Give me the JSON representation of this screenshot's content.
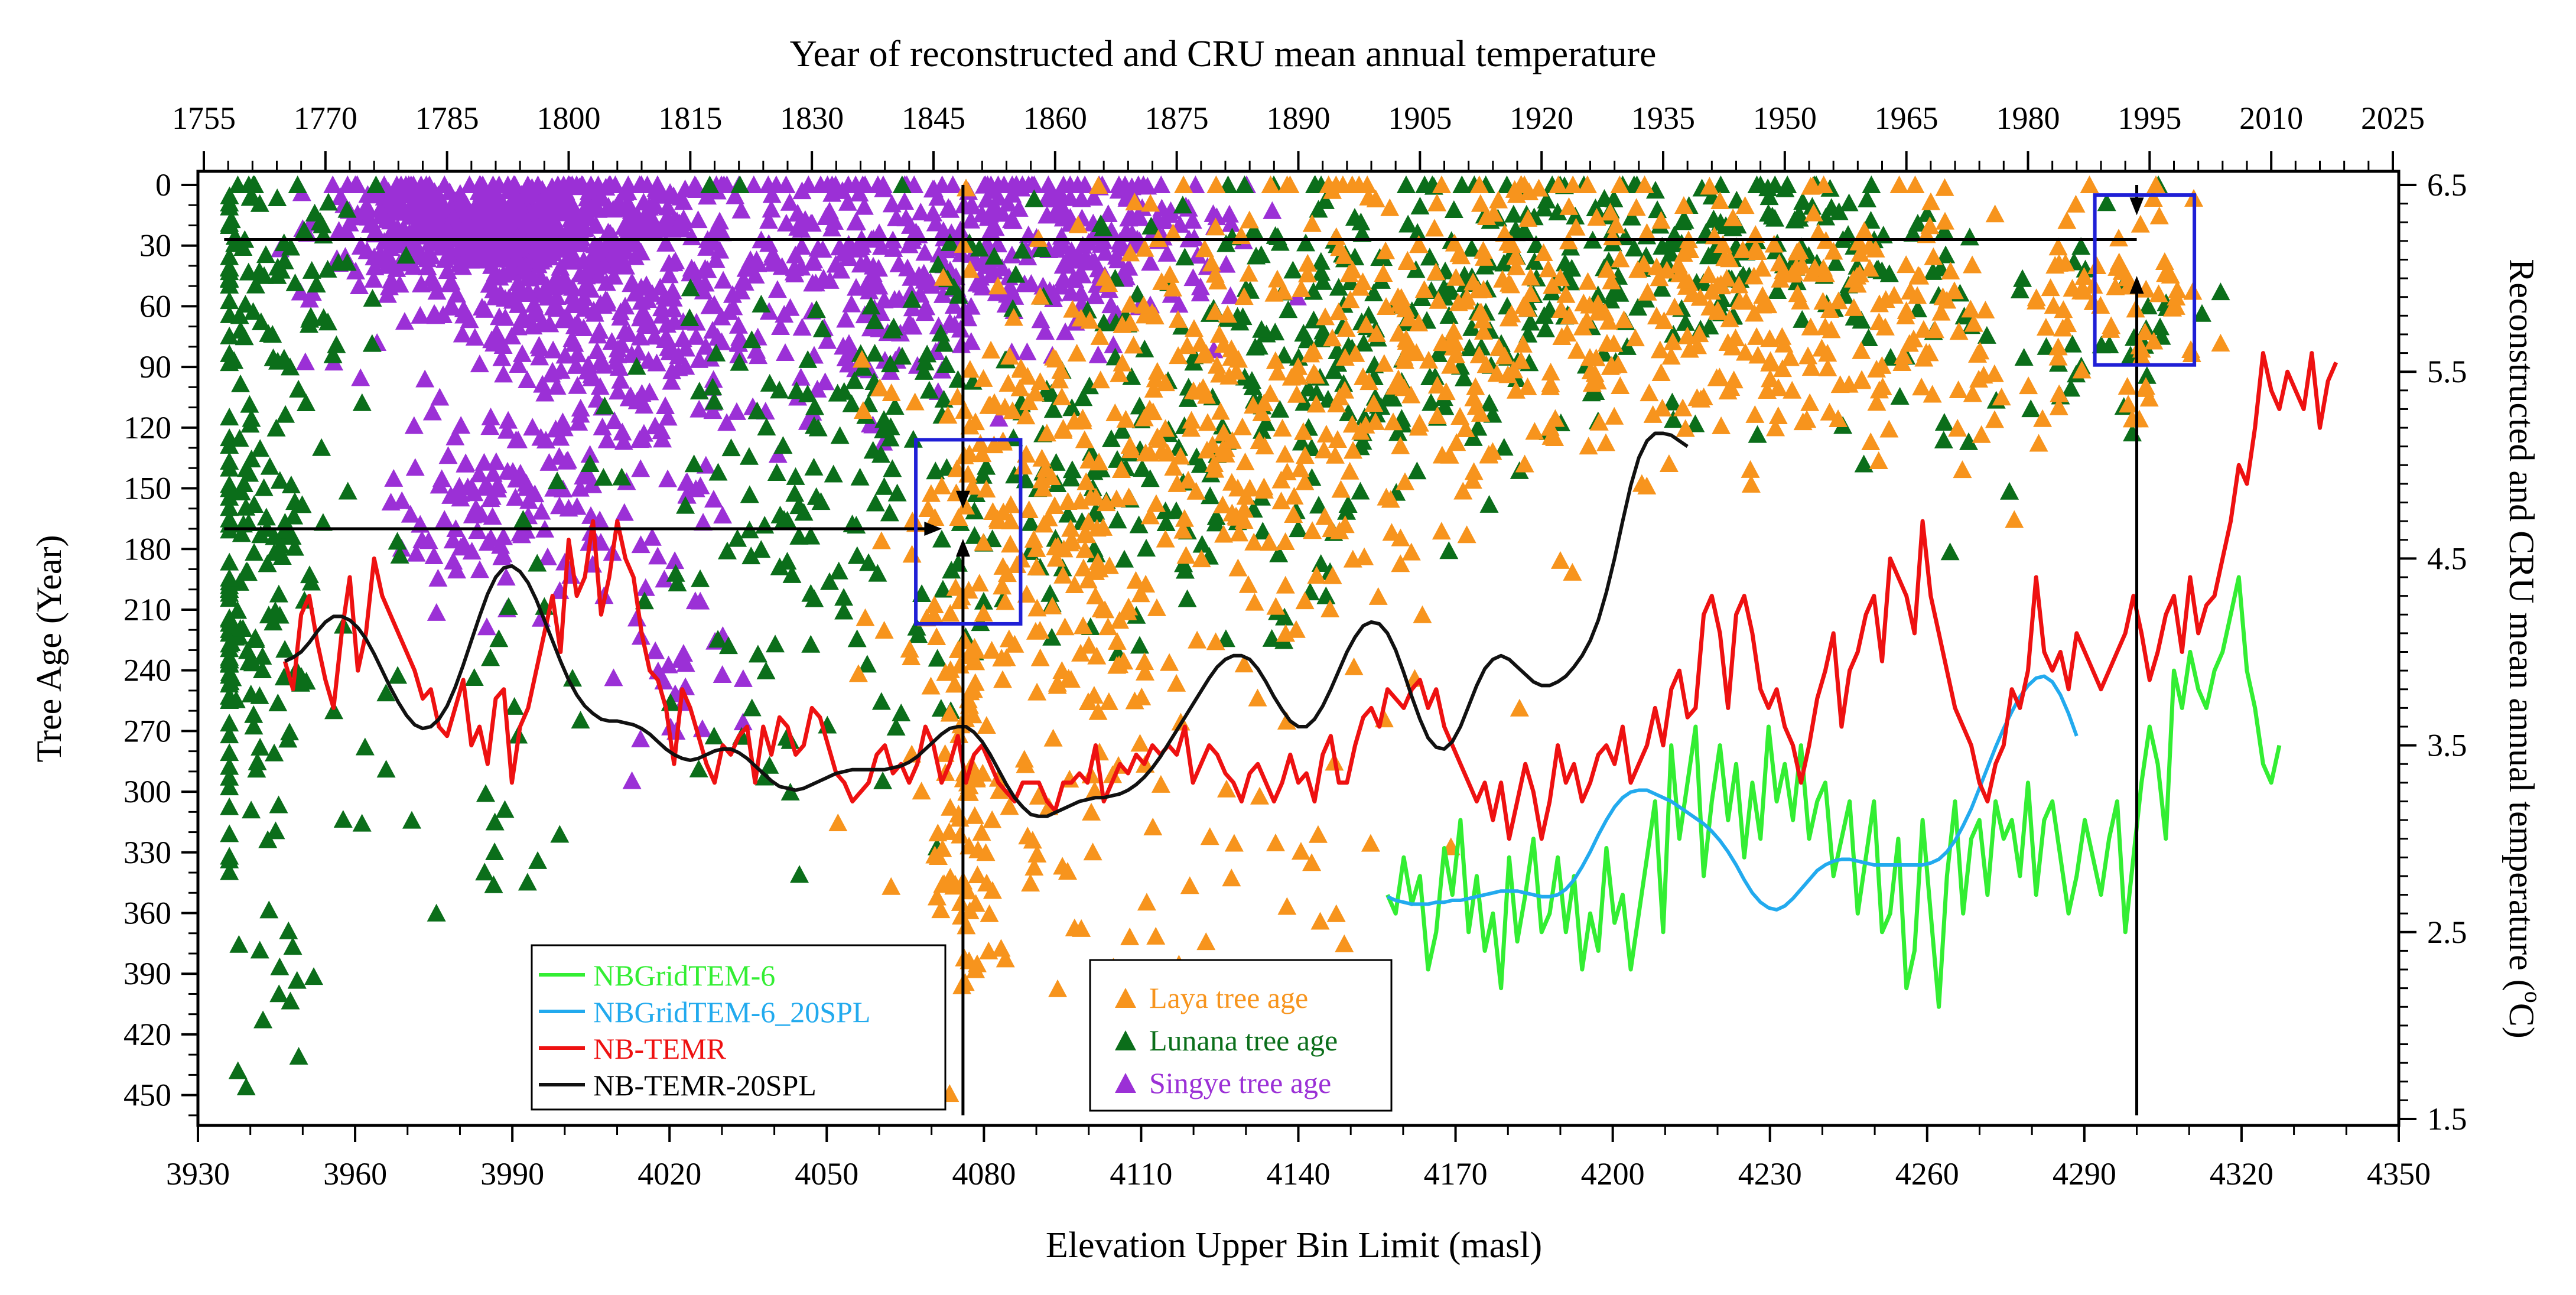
{
  "chart_data": {
    "type": "scatter",
    "title": "Year of reconstructed and CRU mean annual temperature",
    "xlabel": "Elevation Upper Bin Limit (masl)",
    "ylabel": "Tree Age (Year)",
    "ylabel_right_prefix": "Reconstructed and CRU mean annual temperature (",
    "ylabel_right_sup": "o",
    "ylabel_right_suffix": "C)",
    "xlim": [
      3930,
      4350
    ],
    "x_ticks": [
      "3930",
      "3960",
      "3990",
      "4020",
      "4050",
      "4080",
      "4110",
      "4140",
      "4170",
      "4200",
      "4230",
      "4260",
      "4290",
      "4320",
      "4350"
    ],
    "top_xlim": [
      1755,
      2025
    ],
    "top_ticks": [
      "1755",
      "1770",
      "1785",
      "1800",
      "1815",
      "1830",
      "1845",
      "1860",
      "1875",
      "1890",
      "1905",
      "1920",
      "1935",
      "1950",
      "1965",
      "1980",
      "1995",
      "2010",
      "2025"
    ],
    "ylim_left": [
      0,
      465
    ],
    "y_ticks": [
      "0",
      "30",
      "60",
      "90",
      "120",
      "150",
      "180",
      "210",
      "240",
      "270",
      "300",
      "330",
      "360",
      "390",
      "420",
      "450"
    ],
    "ylim_right": [
      1.5,
      6.5
    ],
    "y2_ticks": [
      "1.5",
      "2.5",
      "3.5",
      "4.5",
      "5.5",
      "6.5"
    ],
    "legend_lines": [
      {
        "label": "NBGridTEM-6",
        "color": "#33ee33"
      },
      {
        "label": "NBGridTEM-6_20SPL",
        "color": "#22aaee"
      },
      {
        "label": "NB-TEMR",
        "color": "#ee1111"
      },
      {
        "label": "NB-TEMR-20SPL",
        "color": "#111111"
      }
    ],
    "legend_scatter": [
      {
        "label": "Laya tree age",
        "color": "#f7941d"
      },
      {
        "label": "Lunana tree age",
        "color": "#0b6e1a"
      },
      {
        "label": "Singye tree age",
        "color": "#9b30d6"
      }
    ],
    "scatter_series": [
      {
        "name": "Singye tree age",
        "color": "#9b30d6",
        "clusters": [
          [
            3985,
            20,
            14,
            12,
            420
          ],
          [
            4000,
            40,
            20,
            28,
            380
          ],
          [
            4010,
            100,
            14,
            50,
            160
          ],
          [
            3985,
            160,
            10,
            25,
            90
          ],
          [
            4060,
            40,
            18,
            35,
            260
          ],
          [
            4100,
            30,
            15,
            20,
            180
          ],
          [
            4020,
            230,
            8,
            35,
            30
          ]
        ]
      },
      {
        "name": "Lunana tree age",
        "color": "#0b6e1a",
        "clusters": [
          [
            3945,
            40,
            10,
            30,
            70
          ],
          [
            3940,
            200,
            6,
            70,
            150
          ],
          [
            3945,
            400,
            5,
            40,
            14
          ],
          [
            3990,
            250,
            25,
            60,
            50
          ],
          [
            4050,
            150,
            18,
            70,
            140
          ],
          [
            4110,
            130,
            25,
            55,
            200
          ],
          [
            4170,
            60,
            25,
            40,
            220
          ],
          [
            4230,
            30,
            20,
            20,
            130
          ],
          [
            4270,
            80,
            20,
            40,
            40
          ],
          [
            4298,
            70,
            6,
            30,
            15
          ]
        ]
      },
      {
        "name": "Laya tree age",
        "color": "#f7941d",
        "clusters": [
          [
            4076,
            310,
            3,
            60,
            70
          ],
          [
            4090,
            220,
            15,
            80,
            160
          ],
          [
            4110,
            130,
            20,
            60,
            200
          ],
          [
            4150,
            120,
            20,
            70,
            150
          ],
          [
            4200,
            60,
            30,
            40,
            280
          ],
          [
            4260,
            70,
            25,
            35,
            130
          ],
          [
            4300,
            50,
            8,
            30,
            40
          ],
          [
            4130,
            340,
            18,
            30,
            25
          ]
        ]
      }
    ],
    "series": [
      {
        "name": "NB-TEMR",
        "color": "#ee1111",
        "x_start": 1765,
        "x_step": 1,
        "values": [
          3.95,
          3.8,
          4.2,
          4.3,
          4.05,
          3.85,
          3.7,
          4.1,
          4.4,
          3.9,
          4.1,
          4.5,
          4.3,
          4.2,
          4.1,
          4.0,
          3.9,
          3.75,
          3.8,
          3.6,
          3.55,
          3.7,
          3.85,
          3.5,
          3.6,
          3.4,
          3.75,
          3.8,
          3.3,
          3.6,
          3.7,
          3.9,
          4.1,
          4.3,
          4.0,
          4.6,
          4.3,
          4.4,
          4.7,
          4.2,
          4.4,
          4.7,
          4.5,
          4.4,
          4.1,
          3.9,
          3.85,
          3.7,
          3.4,
          3.8,
          3.7,
          3.55,
          3.4,
          3.3,
          3.5,
          3.45,
          3.55,
          3.6,
          3.3,
          3.6,
          3.45,
          3.65,
          3.6,
          3.45,
          3.5,
          3.7,
          3.65,
          3.5,
          3.35,
          3.3,
          3.2,
          3.25,
          3.3,
          3.45,
          3.5,
          3.35,
          3.4,
          3.3,
          3.4,
          3.6,
          3.5,
          3.3,
          3.4,
          3.55,
          3.3,
          3.45,
          3.5,
          3.4,
          3.3,
          3.25,
          3.2,
          3.3,
          3.3,
          3.3,
          3.2,
          3.15,
          3.3,
          3.3,
          3.35,
          3.3,
          3.5,
          3.2,
          3.3,
          3.4,
          3.35,
          3.45,
          3.4,
          3.5,
          3.45,
          3.5,
          3.45,
          3.6,
          3.3,
          3.4,
          3.5,
          3.45,
          3.35,
          3.3,
          3.2,
          3.35,
          3.4,
          3.3,
          3.2,
          3.3,
          3.45,
          3.3,
          3.35,
          3.2,
          3.45,
          3.55,
          3.3,
          3.3,
          3.5,
          3.65,
          3.7,
          3.6,
          3.8,
          3.75,
          3.7,
          3.8,
          3.85,
          3.7,
          3.8,
          3.6,
          3.5,
          3.4,
          3.3,
          3.2,
          3.3,
          3.1,
          3.3,
          3.0,
          3.2,
          3.4,
          3.25,
          3.0,
          3.2,
          3.5,
          3.3,
          3.4,
          3.2,
          3.3,
          3.45,
          3.5,
          3.4,
          3.6,
          3.3,
          3.4,
          3.5,
          3.7,
          3.5,
          3.8,
          3.9,
          3.65,
          3.7,
          4.2,
          4.3,
          4.1,
          3.7,
          4.2,
          4.3,
          4.1,
          3.8,
          3.7,
          3.8,
          3.6,
          3.5,
          3.3,
          3.5,
          3.75,
          3.9,
          4.1,
          3.6,
          3.9,
          4.0,
          4.2,
          4.3,
          3.95,
          4.5,
          4.4,
          4.3,
          4.1,
          4.7,
          4.3,
          4.1,
          3.9,
          3.7,
          3.6,
          3.5,
          3.3,
          3.2,
          3.4,
          3.5,
          3.8,
          3.7,
          3.9,
          4.4,
          4.0,
          3.9,
          4.0,
          3.8,
          4.1,
          4.0,
          3.9,
          3.8,
          3.9,
          4.0,
          4.1,
          4.3,
          4.1,
          3.85,
          4.0,
          4.2,
          4.3,
          4.0,
          4.4,
          4.1,
          4.25,
          4.3,
          4.5,
          4.7,
          5.0,
          4.9,
          5.2,
          5.6,
          5.4,
          5.3,
          5.5,
          5.4,
          5.3,
          5.6,
          5.2,
          5.45,
          5.55
        ]
      },
      {
        "name": "NB-TEMR-20SPL",
        "color": "#111111",
        "x_start": 1765,
        "x_step": 1,
        "values": [
          3.95,
          3.97,
          4.0,
          4.05,
          4.11,
          4.16,
          4.19,
          4.19,
          4.17,
          4.13,
          4.07,
          3.99,
          3.9,
          3.81,
          3.73,
          3.66,
          3.61,
          3.59,
          3.6,
          3.64,
          3.71,
          3.81,
          3.93,
          4.06,
          4.19,
          4.31,
          4.4,
          4.45,
          4.46,
          4.43,
          4.37,
          4.28,
          4.17,
          4.06,
          3.95,
          3.85,
          3.77,
          3.71,
          3.67,
          3.64,
          3.63,
          3.63,
          3.62,
          3.61,
          3.59,
          3.56,
          3.52,
          3.48,
          3.45,
          3.43,
          3.42,
          3.43,
          3.45,
          3.47,
          3.48,
          3.48,
          3.46,
          3.43,
          3.39,
          3.35,
          3.31,
          3.28,
          3.27,
          3.26,
          3.27,
          3.29,
          3.31,
          3.33,
          3.35,
          3.36,
          3.37,
          3.37,
          3.37,
          3.37,
          3.37,
          3.38,
          3.39,
          3.41,
          3.44,
          3.48,
          3.52,
          3.56,
          3.59,
          3.6,
          3.6,
          3.57,
          3.52,
          3.45,
          3.37,
          3.29,
          3.22,
          3.17,
          3.13,
          3.12,
          3.12,
          3.14,
          3.16,
          3.18,
          3.2,
          3.21,
          3.22,
          3.22,
          3.23,
          3.24,
          3.26,
          3.29,
          3.33,
          3.38,
          3.44,
          3.51,
          3.58,
          3.65,
          3.72,
          3.79,
          3.86,
          3.92,
          3.96,
          3.98,
          3.98,
          3.96,
          3.91,
          3.84,
          3.76,
          3.69,
          3.63,
          3.6,
          3.6,
          3.64,
          3.71,
          3.8,
          3.9,
          4.0,
          4.08,
          4.14,
          4.16,
          4.15,
          4.1,
          4.01,
          3.89,
          3.76,
          3.64,
          3.54,
          3.49,
          3.48,
          3.52,
          3.6,
          3.71,
          3.82,
          3.91,
          3.96,
          3.98,
          3.96,
          3.92,
          3.88,
          3.84,
          3.82,
          3.82,
          3.84,
          3.87,
          3.92,
          3.98,
          4.06,
          4.17,
          4.32,
          4.5,
          4.7,
          4.89,
          5.04,
          5.13,
          5.17,
          5.17,
          5.16,
          5.13,
          5.1
        ]
      },
      {
        "name": "NBGridTEM-6",
        "color": "#33ee33",
        "x_start": 1901,
        "x_step": 1,
        "values": [
          2.7,
          2.6,
          2.9,
          2.65,
          2.8,
          2.3,
          2.5,
          2.95,
          2.7,
          3.1,
          2.5,
          2.8,
          2.4,
          2.6,
          2.2,
          2.9,
          2.45,
          2.7,
          3.0,
          2.5,
          2.6,
          2.9,
          2.5,
          2.8,
          2.3,
          2.6,
          2.4,
          2.95,
          2.55,
          2.7,
          2.3,
          2.6,
          2.9,
          3.2,
          2.5,
          3.5,
          3.0,
          3.3,
          3.6,
          2.8,
          3.2,
          3.5,
          3.1,
          3.4,
          2.9,
          3.3,
          3.0,
          3.6,
          3.2,
          3.4,
          3.1,
          3.5,
          3.0,
          3.2,
          3.3,
          2.8,
          3.0,
          3.2,
          2.6,
          2.9,
          3.2,
          2.5,
          2.6,
          3.0,
          2.2,
          2.4,
          3.1,
          2.6,
          2.1,
          2.8,
          3.2,
          2.6,
          3.0,
          3.1,
          2.7,
          3.2,
          3.0,
          3.1,
          2.8,
          3.3,
          2.7,
          3.1,
          3.2,
          2.9,
          2.6,
          2.8,
          3.1,
          2.9,
          2.7,
          3.0,
          3.2,
          2.5,
          2.9,
          3.3,
          3.6,
          3.4,
          3.0,
          3.9,
          3.7,
          4.0,
          3.8,
          3.7,
          3.9,
          4.0,
          4.2,
          4.4,
          3.9,
          3.7,
          3.4,
          3.3,
          3.5
        ]
      },
      {
        "name": "NBGridTEM-6_20SPL",
        "color": "#22aaee",
        "x_start": 1901,
        "x_step": 1,
        "values": [
          2.69,
          2.67,
          2.66,
          2.65,
          2.65,
          2.65,
          2.66,
          2.66,
          2.67,
          2.67,
          2.68,
          2.69,
          2.7,
          2.71,
          2.72,
          2.72,
          2.72,
          2.71,
          2.7,
          2.69,
          2.69,
          2.7,
          2.73,
          2.78,
          2.85,
          2.93,
          3.02,
          3.1,
          3.17,
          3.22,
          3.25,
          3.26,
          3.26,
          3.24,
          3.22,
          3.2,
          3.17,
          3.14,
          3.11,
          3.08,
          3.04,
          2.99,
          2.93,
          2.86,
          2.78,
          2.71,
          2.66,
          2.63,
          2.62,
          2.64,
          2.68,
          2.73,
          2.78,
          2.83,
          2.86,
          2.88,
          2.89,
          2.89,
          2.88,
          2.87,
          2.86,
          2.86,
          2.86,
          2.86,
          2.86,
          2.86,
          2.86,
          2.87,
          2.89,
          2.93,
          2.99,
          3.07,
          3.16,
          3.27,
          3.38,
          3.49,
          3.59,
          3.68,
          3.76,
          3.82,
          3.86,
          3.87,
          3.84,
          3.77,
          3.67,
          3.55
        ]
      }
    ],
    "annotations": [
      {
        "type": "hline",
        "y_age": 27,
        "x_from": 3935,
        "x_to": 4300
      },
      {
        "type": "arrow_h",
        "y_age": 170,
        "x_from": 3935,
        "x_to": 4072
      },
      {
        "type": "arrow_v",
        "x": 4076,
        "age_from": 460,
        "age_to": 175
      },
      {
        "type": "arrow_v_down",
        "x": 4076,
        "age_from": 0,
        "age_to": 160
      },
      {
        "type": "arrow_v",
        "x": 4300,
        "age_from": 460,
        "age_to": 45
      },
      {
        "type": "arrow_v_down",
        "x": 4300,
        "age_from": 0,
        "age_to": 15
      },
      {
        "type": "box",
        "x0": 4067,
        "x1": 4087,
        "age0": 126,
        "age1": 217
      },
      {
        "type": "box",
        "x0": 4292,
        "x1": 4311,
        "age0": 5,
        "age1": 89
      }
    ]
  }
}
